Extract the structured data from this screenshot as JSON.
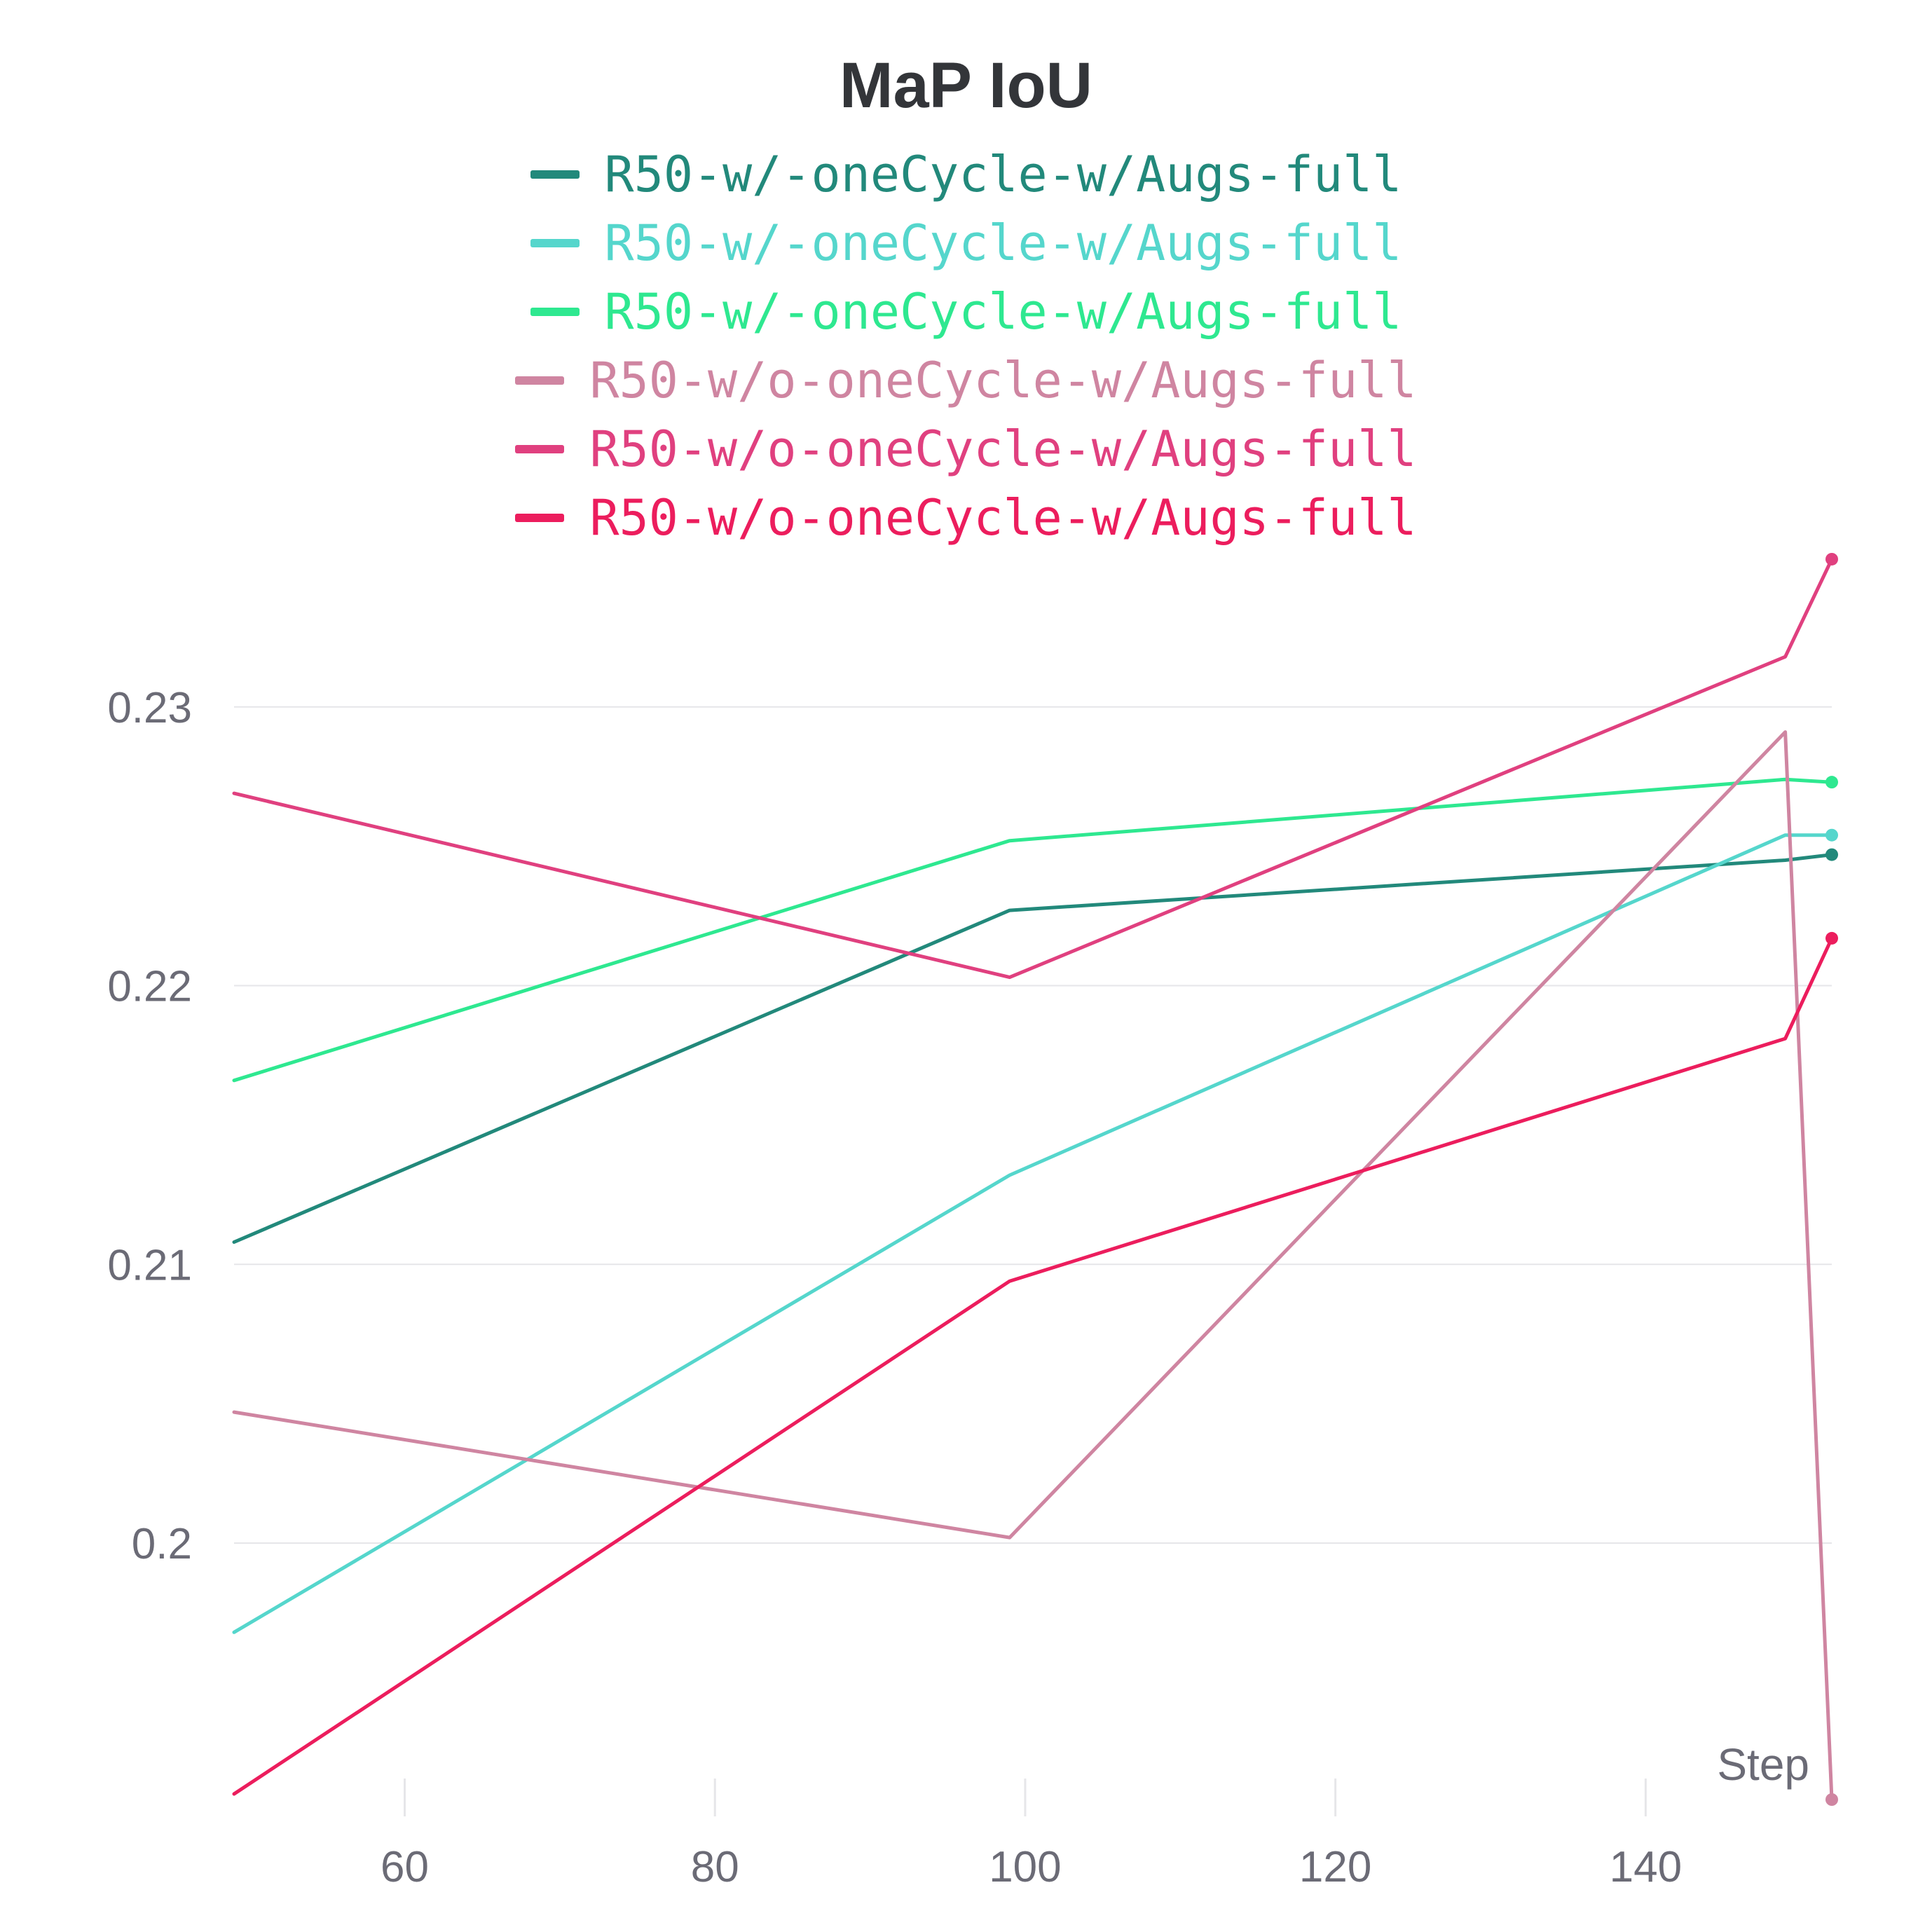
{
  "chart_data": {
    "type": "line",
    "title": "MaP IoU",
    "xlabel": "Step",
    "ylabel": "",
    "xlim": [
      49,
      152
    ],
    "ylim": [
      0.1908,
      0.2355
    ],
    "x_ticks": [
      60,
      80,
      100,
      120,
      140
    ],
    "x_tick_labels": [
      "60",
      "80",
      "100",
      "120",
      "140"
    ],
    "y_ticks": [
      0.2,
      0.21,
      0.22,
      0.23
    ],
    "y_tick_labels": [
      "0.2",
      "0.21",
      "0.22",
      "0.23"
    ],
    "grid": true,
    "legend_position": "top-center",
    "series": [
      {
        "name": "R50-w/-oneCycle-w/Augs-full",
        "color": "#22897b",
        "x": [
          49,
          99,
          149,
          152
        ],
        "y": [
          0.2108,
          0.2227,
          0.2245,
          0.2247
        ],
        "end_marker": true
      },
      {
        "name": "R50-w/-oneCycle-w/Augs-full",
        "color": "#55d6cc",
        "x": [
          49,
          99,
          149,
          152
        ],
        "y": [
          0.1968,
          0.2132,
          0.2254,
          0.2254
        ],
        "end_marker": true
      },
      {
        "name": "R50-w/-oneCycle-w/Augs-full",
        "color": "#2ee890",
        "x": [
          49,
          99,
          149,
          152
        ],
        "y": [
          0.2166,
          0.2252,
          0.2274,
          0.2273
        ],
        "end_marker": true
      },
      {
        "name": "R50-w/o-oneCycle-w/Augs-full",
        "color": "#cf85a1",
        "x": [
          49,
          99,
          149,
          152
        ],
        "y": [
          0.2047,
          0.2002,
          0.2291,
          0.1908
        ],
        "end_marker": true
      },
      {
        "name": "R50-w/o-oneCycle-w/Augs-full",
        "color": "#e0407f",
        "x": [
          49,
          99,
          149,
          152
        ],
        "y": [
          0.2269,
          0.2203,
          0.2318,
          0.2353
        ],
        "end_marker": true
      },
      {
        "name": "R50-w/o-oneCycle-w/Augs-full",
        "color": "#ec1d5d",
        "x": [
          49,
          99,
          149,
          152
        ],
        "y": [
          0.191,
          0.2094,
          0.2181,
          0.2217
        ],
        "end_marker": true
      }
    ]
  }
}
